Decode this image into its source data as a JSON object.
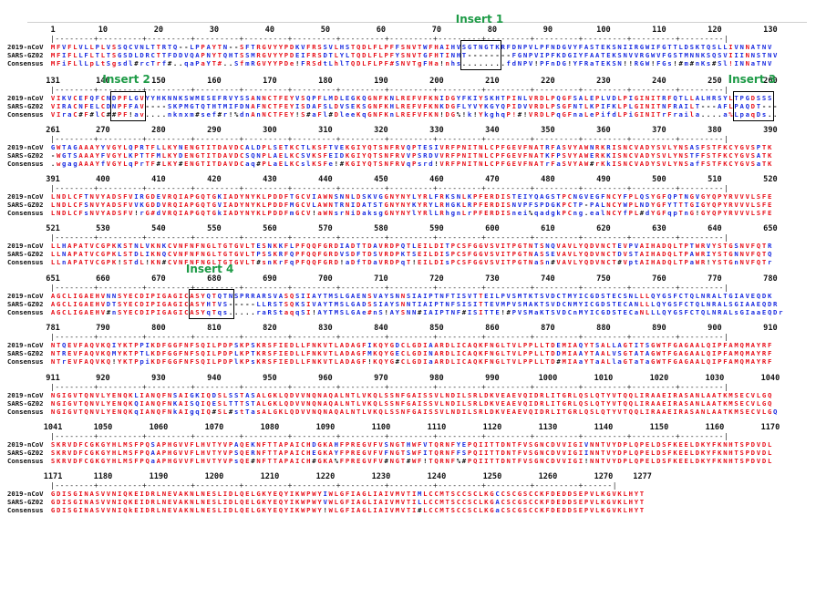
{
  "labels": [
    "2019-nCoV",
    "SARS-GZ02",
    "Consensus"
  ],
  "inserts": [
    {
      "label": "Insert 1",
      "block": 0,
      "start": 75,
      "end": 81
    },
    {
      "label": "Insert 2",
      "block": 1,
      "start": 12,
      "end": 17
    },
    {
      "label": "Insert 3",
      "block": 1,
      "start": 124,
      "end": 130
    },
    {
      "label": "Insert 4",
      "block": 5,
      "start": 26,
      "end": 33
    }
  ],
  "blocks": [
    {
      "ticks": [
        "1",
        "10",
        "20",
        "30",
        "40",
        "50",
        "60",
        "70",
        "80",
        "90",
        "100",
        "110",
        "120",
        "130"
      ],
      "rule": "|--------+---------+---------+---------+---------+---------+---------+---------+---------+---------+---------+---------+---------+---------|",
      "rows": [
        "MFVFLVLLPLVSSQCVNLTTRTQ--LPPAYTN--SFTRGVYYPDKVFRSSVLHSTQDLFLPFFSNVTWFHAIHVSGTNGTKRFDNPVLPFNDGVYFASTEKSNIIRGWIFGTTLDSKTQSLLIVNNATNV",
        "MFIFLLFLTLTSGSDLDRCTTFDDVQAPNYTQHTSSMRGVYYPDEIFRSDTLYLTQDLFLPFYSNVTGFHTINHT--------FGNPVIPFKDGIYFAATEKSNVVRGWVFGSTMNNKSQSVIIINNSTNV",
        "MFiFLlLpLtSgsdl#rcTrf#..qaPaYT#..SfmRGVYYPDe!FRSdtLhlTQDLFLPF#SNVTgFHa!nhs........fdNPV!PFnDG!YFRaTEKSN!!RGW!FGs!#m#nKs#Sl!INNaTNV"
      ]
    },
    {
      "ticks": [
        "131",
        "140",
        "150",
        "160",
        "170",
        "180",
        "190",
        "200",
        "210",
        "220",
        "230",
        "240",
        "250",
        "260"
      ],
      "rule": "|--------+---------+---------+---------+---------+---------+---------+---------+---------+---------+---------+---------+---------+---------|",
      "rows": [
        "VIKVCEFQFCNDPFLGVYYHKNNKSWMESEFRVYSSANNCTFEYVSQPFLMDLEGKQGNFKNLREFVFKNIDGYFKIYSKHTPINLVRDLPQGFSALEPLVDLPIGINITRFQTLLALHRSYLTPGDSSS",
        "VIRACNFELCDNPFFAV----SKPMGTQTHTMIFDNAFNCTFEYISDAFSLDVSEKSGNFKHLREFVFKNKDGFLYVYKGYQPIDVVRDLPSGFNTLKPIFKLPLGINITNFRAILT---AFLPAQDT---",
        "VIraC#F#lC##PF!av....nknxm#sef#r!%dnAnNCTFEY!S#aFl#DleeKqGNFKnLREFVFKN!DG%!k!YkghqP!#!VRDLPqGFnaLePifdLPiGINITrFraila....a%LpaqDs.."
      ]
    },
    {
      "ticks": [
        "261",
        "270",
        "280",
        "290",
        "300",
        "310",
        "320",
        "330",
        "340",
        "350",
        "360",
        "370",
        "380",
        "390"
      ],
      "rule": "|--------+---------+---------+---------+---------+---------+---------+---------+---------+---------+---------+---------+---------+---------|",
      "rows": [
        "GWTAGAAAYYVGYLQPRTFLLKYNENGTITDAVDCALDPLSETKCTLKSFTVEKGIYQTSNFRVQPTESIVRFPNITNLCPFGEVFNATRFASVYAWNRKRISNCVADYSVLYNSASFSTFKCYGVSPTK",
        "-WGTSAAAYFVGYLKPTTFMLKYDENGTITDAVDCSQNPLAELKCSVKSFEIDKGIYQTSNFRVVPSRDVVRFPNITNLCPFGEVFNATKFPSVYAWERKKISNCVADYSVLYNSTFFSTFKCYGVSATK",
        ".wgagAAAYfVGYLqPrTF#LKY#ENGTITDAVDCaq#PLaELKCslKSFe!#KGIYQTSNFRVqPsrd!VRFPNITNLCPFGEVFNATrFaSVYAW#rKkISNCVADYSVLYNSafFSTFKCYGVSaTK"
      ]
    },
    {
      "ticks": [
        "391",
        "400",
        "410",
        "420",
        "430",
        "440",
        "450",
        "460",
        "470",
        "480",
        "490",
        "500",
        "510",
        "520"
      ],
      "rule": "|--------+---------+---------+---------+---------+---------+---------+---------+---------+---------+---------+---------+---------+---------|",
      "rows": [
        "LNDLCFTNVYADSFVIRGDEVRQIAPGQTGKIADYNYKLPDDFTGCVIAWNSNNLDSKVGGNYNYLYRLFRKSNLKPFERDISTEIYQAGSTPCNGVEGFNCYFPLQSYGFQPTNGVGYQPYRVVVLSFE",
        "LNDLCFSNVYADSFVVKGDDVRQIAPGQTGVIADYNYKLPDDFMGCVLAWNTRNIDATSTGNYNYKYRYLRHGKLRPFERDISNVPFSPDGKPCTP-PALNCYWPLNDYGFYTTTGIGYQPYRVVVLSFE",
        "LNDLCFsNVYADSFV!rG#dVRQIAPGQTGkIADYNYKLPDDFmGCV!aWNsrNiDaksgGNYNYlYRlLRhgnLrPFERDISnei%qadgkPCng.ealNCYfPL#dYGFqpTnG!GYQPYRVVVLSFE"
      ]
    },
    {
      "ticks": [
        "521",
        "530",
        "540",
        "550",
        "560",
        "570",
        "580",
        "590",
        "600",
        "610",
        "620",
        "630",
        "640",
        "650"
      ],
      "rule": "|--------+---------+---------+---------+---------+---------+---------+---------+---------+---------+---------+---------+---------+---------|",
      "rows": [
        "LLHAPATVCGPKKSTNLVKNKCVNFNFNGLTGTGVLTESNKKFLPFQQFGRDIADTTDAVRDPQTLEILDITPCSFGGVSVITPGTNTSNQVAVLYQDVNCTEVPVAIHADQLTPTWRVYSTGSNVFQTR",
        "LLNAPATVCGPKLSTDLIKNQCVNFNFNGLTGTGVLTPSSKRFQPFQQFGRDVSDFTDSVRDPKTSEILDISPCSFGGVSVITPGTNASSEVAVLYQDVNCTDVSTAIHADQLTPAWRIYSTGNNVFQTQ",
        "LLnAPATVCGPK!STdL!KN#CVNFNFNGLTGTGVLT#snKrFqPFQQFGRD!aDfTDaVRDPqT!EILDIsPCSFGGVSVITPGTNaSn#VAVLYQDVNCT#VptAIHADQLTPaWR!YSTGnNVFQTr"
      ]
    },
    {
      "ticks": [
        "651",
        "660",
        "670",
        "680",
        "690",
        "700",
        "710",
        "720",
        "730",
        "740",
        "750",
        "760",
        "770",
        "780"
      ],
      "rule": "|--------+---------+---------+---------+---------+---------+---------+---------+---------+---------+---------+---------+---------+---------|",
      "rows": [
        "AGCLIGAEHVNNSYECDIPIGAGICASYQTQTNSPRRARSVASQSIIAYTMSLGAENSVAYSNNSIAIPTNFTISVTTEILPVSMTKTSVDCTMYICGDSTECSNLLLQYGSFCTQLNRALTGIAVEQDK",
        "AGCLIGAEHVDTSYECDIPIGAGICASYHTVS-----LLRSTSQKSIVAYTMSLGADSSIAYSNNTIAIPTNFSISITTEVMPVSMAKTSVDCNMYICGDSTECANLLLQYGSFCTQLNRALSGIAAEQDR",
        "AGCLIGAEHV#nSYECDIPIGAGICASYqTqs.....raRStaqqSI!AYTMSLGAe#nS!AYSNN#IAIPTNF#ISITTE!#PVSMaKTSVDCnMYICGDSTECaNLLLQYGSFCTQLNRALsGIaaEQDr"
      ]
    },
    {
      "ticks": [
        "781",
        "790",
        "800",
        "810",
        "820",
        "830",
        "840",
        "850",
        "860",
        "870",
        "880",
        "890",
        "900",
        "910"
      ],
      "rule": "|--------+---------+---------+---------+---------+---------+---------+---------+---------+---------+---------+---------+---------+---------|",
      "rows": [
        "NTQEVFAQVKQIYKTPPIKDFGGFNFSQILPDPSKPSKRSFIEDLLFNKVTLADAGFIKQYGDCLGDIAARDLICAQKFNGLTVLPPLLTDEMIAQYTSALLAGTITSGWTFGAGAALQIPFAMQMAYRF",
        "NTREVFAQVKQMYKTPTLKDFGGFNFSQILPDPLKPTKRSFIEDLLFNKVTLADAGFMKQYGECLGDINARDLICAQKFNGLTVLPPLLTDDMIAAYTAALVSGTATAGWTFGAGAALQIPFAMQMAYRF",
        "NTrEVFAQVKQ!YKTPpiKDFGGFNFSQILPDPlKPsKRSFIEDLLFNKVTLADAGF!KQYG#CLGDIaARDLICAQKFNGLTVLPPLLTD#MIAaYTaALlaGTaTaGWTFGAGAALQIPFAMQMAYRF"
      ]
    },
    {
      "ticks": [
        "911",
        "920",
        "930",
        "940",
        "950",
        "960",
        "970",
        "980",
        "990",
        "1000",
        "1010",
        "1020",
        "1030",
        "1040"
      ],
      "rule": "|--------+---------+---------+---------+---------+---------+---------+---------+---------+---------+---------+---------+---------+---------|",
      "rows": [
        "NGIGVTQNVLYENQKLIANQFNSAIGKIQDSLSSTASALGKLQDVVNQNAQALNTLVKQLSSNFGAISSVLNDILSRLDKVEAEVQIDRLITGRLQSLQTYVTQQLIRAAEIRASANLAATKMSECVLGQ",
        "NGIGVTQNVLYENQKQIANQFNKAISQIQESLTTTSTALGKLQDVVNQNAQALNTLVKQLSSNFGAISSVLNDILSRLDKVEAEVQIDRLITGRLQSLQTYVTQQLIRAAEIRASANLAATKMSECVLGQ",
        "NGIGVTQNVLYENQKqIANQFNkAIgqIQ#SL#stTasALGKLQDVVNQNAQALNTLVKQLSSNFGAISSVLNDILSRLDKVEAEVQIDRLITGRLQSLQTYVTQQLIRAAEIRASANLAATKMSECVLGQ"
      ]
    },
    {
      "ticks": [
        "1041",
        "1050",
        "1060",
        "1070",
        "1080",
        "1090",
        "1100",
        "1110",
        "1120",
        "1130",
        "1140",
        "1150",
        "1160",
        "1170"
      ],
      "rule": "|--------+---------+---------+---------+---------+---------+---------+---------+---------+---------+---------+---------+---------+---------|",
      "rows": [
        "SKRVDFCGKGYHLMSFPQSAPHGVVFLHVTYVPAQEKNFTTAPAICHDGKAHFPREGVFVSNGTHWFVTQRNFYEPQIITTDNTFVSGNCDVVIGIVNNTVYDPLQPELDSFKEELDKYFKNHTSPDVDL",
        "SKRVDFCGKGYHLMSFPQAAPHGVVFLHVTYVPSQERNFTTAPAICHEGKAYFPREGVFVFNGTSWFITQRNFFSPQIITTDNTFVSGNCDVVIGIINNTVYDPLQPELDSFKEELDKYFKNHTSPDVDL",
        "SKRVDFCGKGYHLMSFPQaAPHGVVFLHVTYVPsQE#NFTTAPAICH#GKA%FPREGVFV#NGT#WF!TQRNF%#PQIITTDNTFVSGNCDVVIGI!NNTVYDPLQPELDSFKEELDKYFKNHTSPDVDL"
      ]
    },
    {
      "ticks": [
        "1171",
        "1180",
        "1190",
        "1200",
        "1210",
        "1220",
        "1230",
        "1240",
        "1250",
        "1260",
        "1270",
        "1277"
      ],
      "rule": "|--------+---------+---------+---------+---------+---------+---------+---------+---------+---------+---------+------|",
      "rows": [
        "GDISGINASVVNIQKEIDRLNEVAKNLNESLIDLQELGKYEQYIKWPWYIWLGFIAGLIAIVMVTIMLCCMTSCCSCLKGCCSCGSCCKFDEDDSEPVLKGVKLHYT",
        "GDISGINASVVNIQKEIDRLNEVAKNLNESLIDLQELGKYEQYIKWPWYVWLGFIAGLIAIVMVTILLCCMTSCCSCLKGACSCGSCCKFDEDDSEPVLKGVKLHYT",
        "GDISGINASVVNIQkEIDRLNEVAKNLNESLIDLQELGKYEQYIKWPWY!WLGFIAGLIAIVMVTI#LCCMTSCCSCLKGaCSCGSCCKFDEDDSEPVLKGVKLHYT"
      ]
    }
  ]
}
